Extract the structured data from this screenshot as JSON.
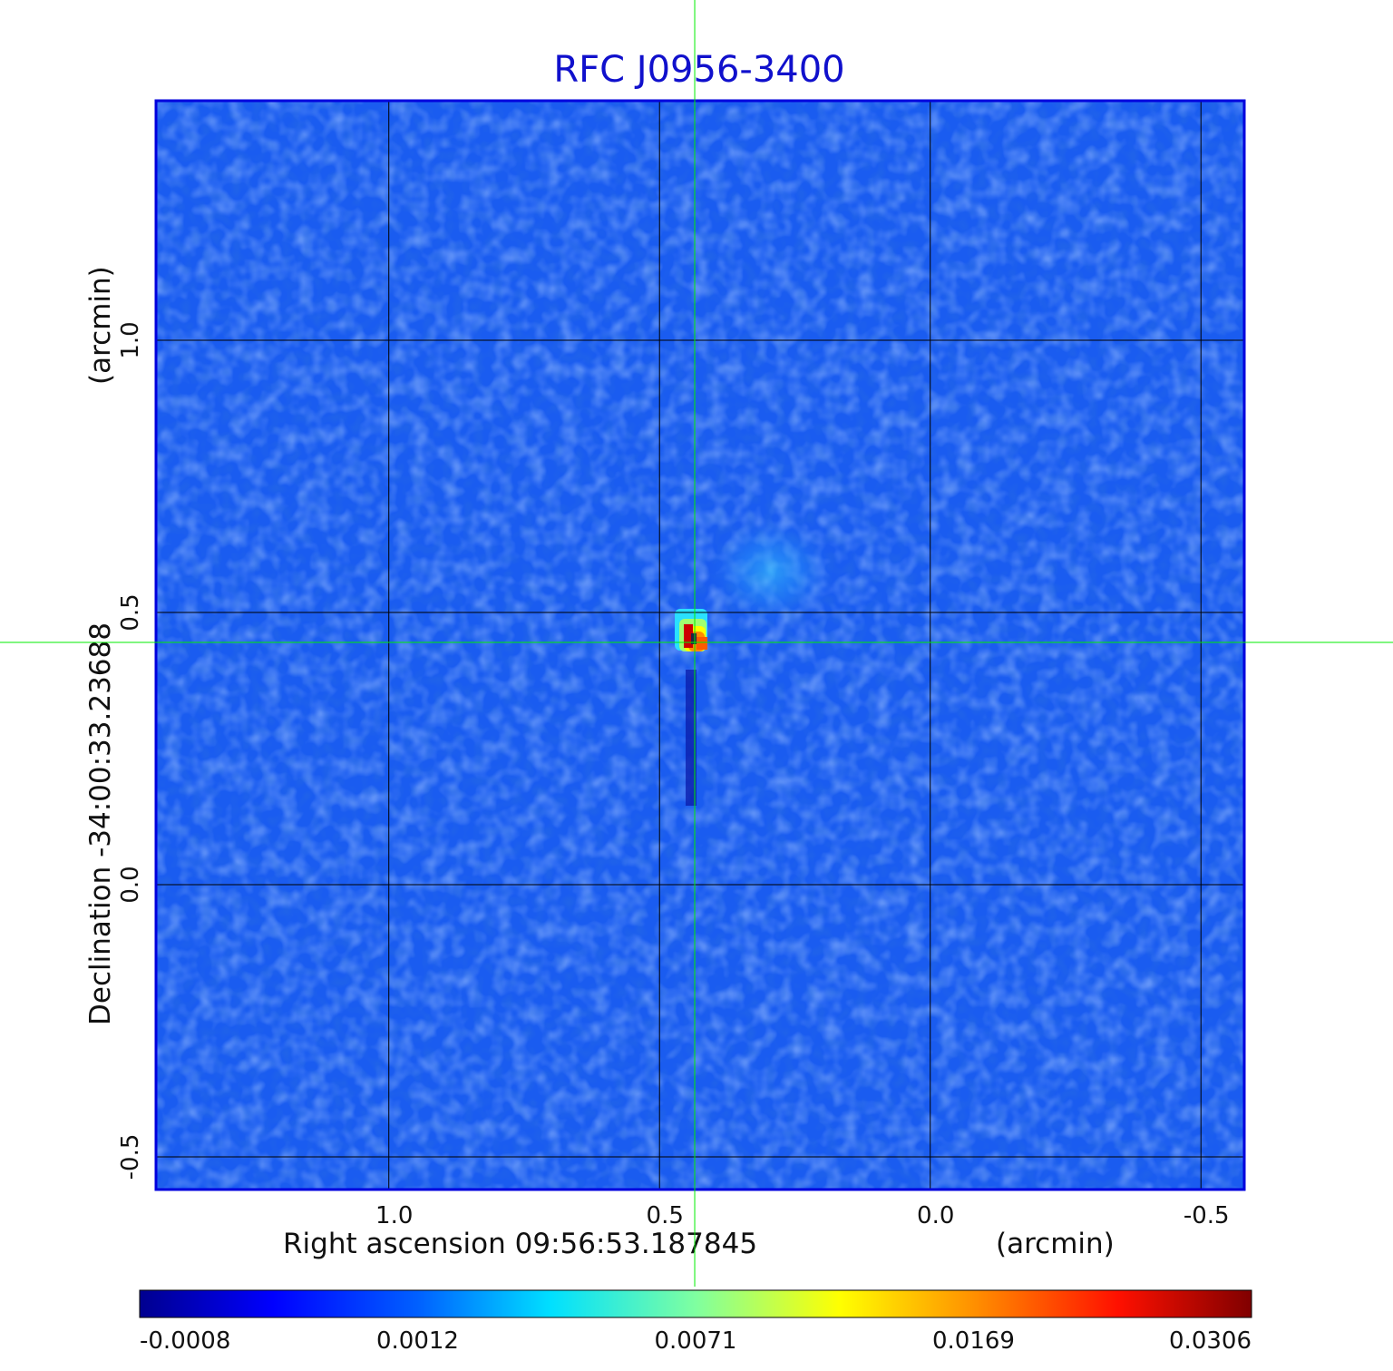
{
  "chart_data": {
    "type": "heatmap",
    "title": "RFC J0956-3400",
    "xlabel": "Right ascension  09:56:53.187845",
    "xunit": "(arcmin)",
    "ylabel": "Declination  -34:00:33.23688",
    "yunit": "(arcmin)",
    "x_ticks": [
      "1.0",
      "0.5",
      "0.0",
      "-0.5"
    ],
    "x_tick_values": [
      1.0,
      0.5,
      0.0,
      -0.5
    ],
    "y_ticks": [
      "1.0",
      "0.5",
      "0.0",
      "-0.5"
    ],
    "y_tick_values": [
      1.0,
      0.5,
      0.0,
      -0.5
    ],
    "xlim": [
      1.43,
      -0.58
    ],
    "ylim": [
      -0.56,
      1.44
    ],
    "grid": true,
    "crosshair": {
      "x": 0.435,
      "y": 0.445,
      "color": "#00ee00"
    },
    "source": {
      "x": 0.435,
      "y": 0.445,
      "peak": 0.0306
    },
    "colormap": "jet",
    "colorbar": {
      "ticks": [
        "-0.0008",
        "0.0012",
        "0.0071",
        "0.0169",
        "0.0306"
      ],
      "tick_values": [
        -0.0008,
        0.0012,
        0.0071,
        0.0169,
        0.0306
      ],
      "placement": "bottom"
    },
    "colors": {
      "title": "#1010cc",
      "frame": "#0000dd",
      "background": "#1a5cf0"
    }
  }
}
